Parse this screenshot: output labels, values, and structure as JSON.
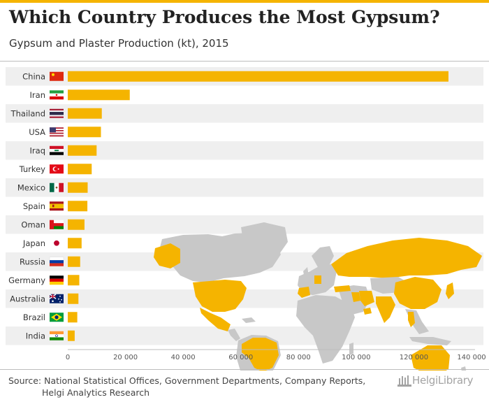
{
  "header": {
    "title": "Which Country Produces the Most Gypsum?",
    "subtitle": "Gypsum and Plaster Production (kt), 2015"
  },
  "footer": {
    "source_line1": "Source: National Statistical Offices, Government Departments, Company Reports,",
    "source_line2": "Helgi Analytics Research",
    "logo_text": "HelgiLibrary"
  },
  "colors": {
    "accent": "#f5b400",
    "map_land": "#c8c8c8",
    "band": "#efefef"
  },
  "chart_data": {
    "type": "bar",
    "orientation": "horizontal",
    "title": "Which Country Produces the Most Gypsum?",
    "subtitle": "Gypsum and Plaster Production (kt), 2015",
    "xlabel": "",
    "ylabel": "",
    "categories": [
      "China",
      "Iran",
      "Thailand",
      "USA",
      "Iraq",
      "Turkey",
      "Mexico",
      "Spain",
      "Oman",
      "Japan",
      "Russia",
      "Germany",
      "Australia",
      "Brazil",
      "India"
    ],
    "values": [
      132000,
      21500,
      11800,
      11500,
      10000,
      8300,
      6900,
      6800,
      5800,
      4800,
      4300,
      4000,
      3700,
      3300,
      2400
    ],
    "xlim": [
      0,
      140000
    ],
    "xticks": [
      0,
      20000,
      40000,
      60000,
      80000,
      100000,
      120000,
      140000
    ],
    "xtick_labels": [
      "0",
      "20 000",
      "40 000",
      "60 000",
      "80 000",
      "100 000",
      "120 000",
      "140 000"
    ],
    "flags": [
      "china-flag-icon",
      "iran-flag-icon",
      "thailand-flag-icon",
      "usa-flag-icon",
      "iraq-flag-icon",
      "turkey-flag-icon",
      "mexico-flag-icon",
      "spain-flag-icon",
      "oman-flag-icon",
      "japan-flag-icon",
      "russia-flag-icon",
      "germany-flag-icon",
      "australia-flag-icon",
      "brazil-flag-icon",
      "india-flag-icon"
    ],
    "grid": false,
    "legend": "none",
    "background_map": "world-map-highlighting-listed-countries"
  }
}
